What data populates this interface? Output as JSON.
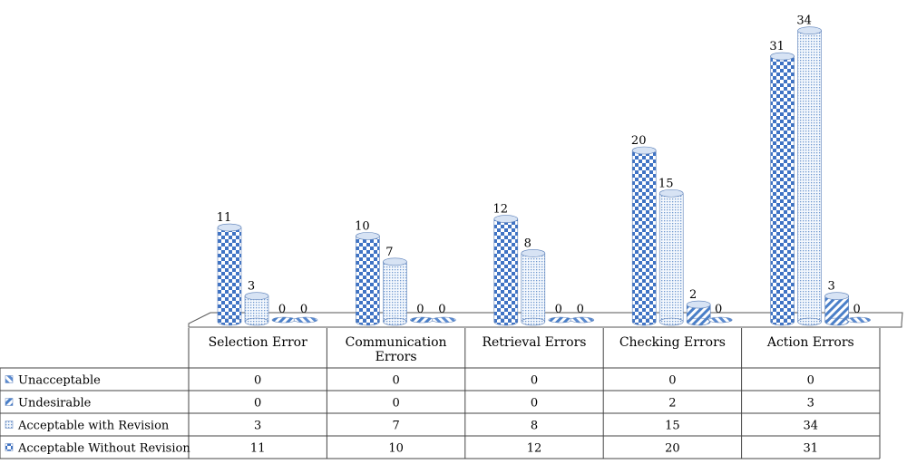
{
  "chart_data": {
    "type": "bar",
    "categories": [
      "Selection Error",
      "Communication Errors",
      "Retrieval Errors",
      "Checking Errors",
      "Action Errors"
    ],
    "series": [
      {
        "name": "Acceptable Without Revision",
        "values": [
          11,
          10,
          12,
          20,
          31
        ],
        "color": "#3f73c4",
        "pattern": "checker"
      },
      {
        "name": "Acceptable with Revision",
        "values": [
          3,
          7,
          8,
          15,
          34
        ],
        "color": "#8fb1dd",
        "pattern": "dots"
      },
      {
        "name": "Undesirable",
        "values": [
          0,
          0,
          0,
          2,
          3
        ],
        "color": "#4a7fc8",
        "pattern": "diagonal"
      },
      {
        "name": "Unacceptable",
        "values": [
          0,
          0,
          0,
          0,
          0
        ],
        "color": "#5a8ad0",
        "pattern": "wave"
      }
    ],
    "table_rows": [
      {
        "label": "Unacceptable",
        "values": [
          "0",
          "0",
          "0",
          "0",
          "0"
        ]
      },
      {
        "label": "Undesirable",
        "values": [
          "0",
          "0",
          "0",
          "2",
          "3"
        ]
      },
      {
        "label": "Acceptable with Revision",
        "values": [
          "3",
          "7",
          "8",
          "15",
          "34"
        ]
      },
      {
        "label": "Acceptable Without Revision",
        "values": [
          "11",
          "10",
          "12",
          "20",
          "31"
        ]
      }
    ],
    "data_labels": true,
    "grid": false,
    "legend": "data-table"
  }
}
